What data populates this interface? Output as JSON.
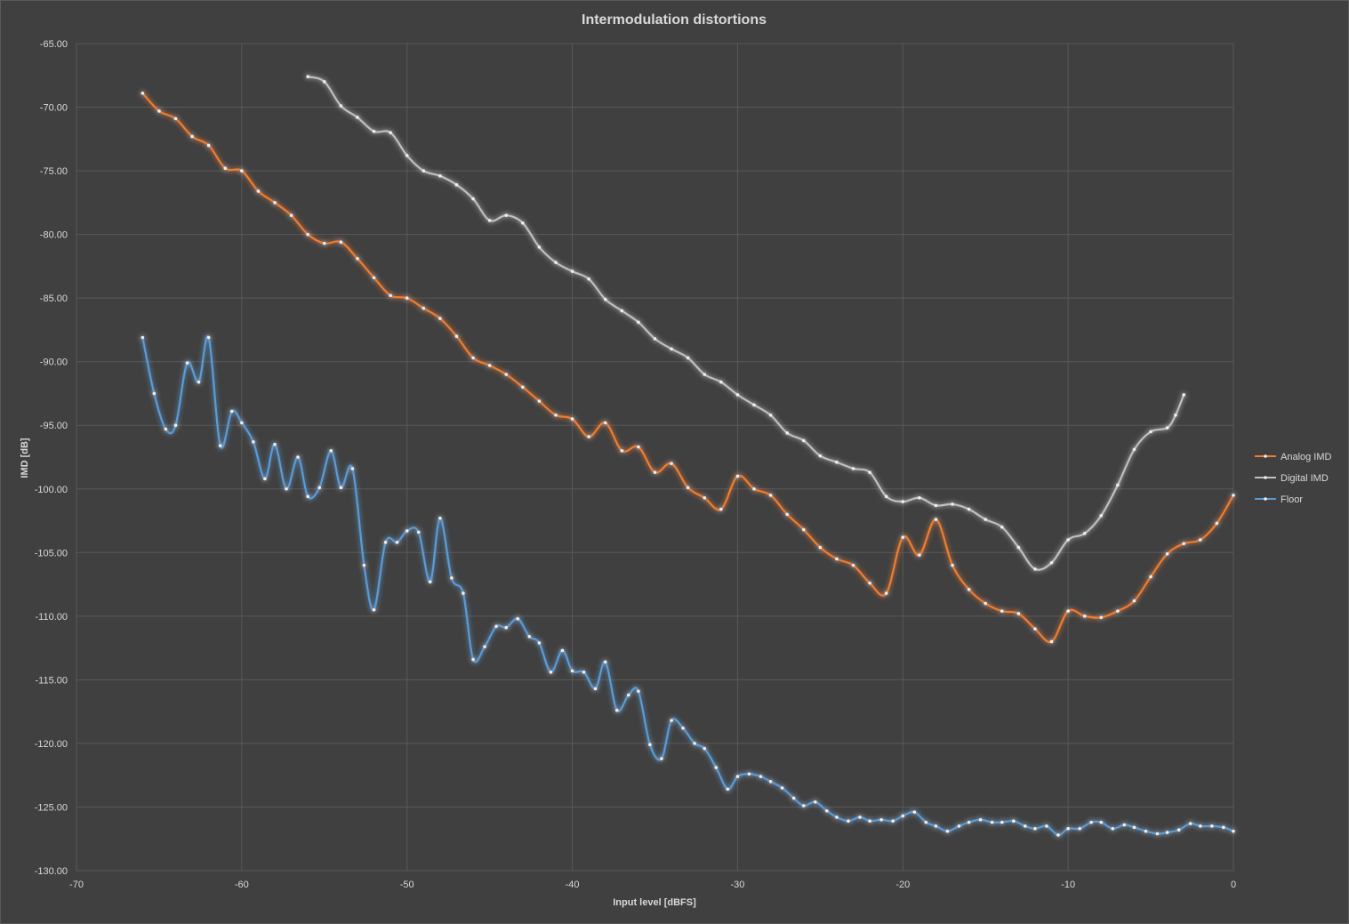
{
  "chart_data": {
    "type": "line",
    "title": "Intermodulation distortions",
    "xlabel": "Input level [dBFS]",
    "ylabel": "IMD [dB]",
    "xlim": [
      -70,
      0
    ],
    "ylim": [
      -130,
      -65
    ],
    "xticks": [
      -70,
      -60,
      -50,
      -40,
      -30,
      -20,
      -10,
      0
    ],
    "xtick_labels": [
      "-70",
      "-60",
      "-50",
      "-40",
      "-30",
      "-20",
      "-10",
      "0"
    ],
    "yticks": [
      -65,
      -70,
      -75,
      -80,
      -85,
      -90,
      -95,
      -100,
      -105,
      -110,
      -115,
      -120,
      -125,
      -130
    ],
    "ytick_labels": [
      "-65.00",
      "-70.00",
      "-75.00",
      "-80.00",
      "-85.00",
      "-90.00",
      "-95.00",
      "-100.00",
      "-105.00",
      "-110.00",
      "-115.00",
      "-120.00",
      "-125.00",
      "-130.00"
    ],
    "grid": true,
    "legend_position": "right",
    "series": [
      {
        "name": "Analog IMD",
        "color": "#ED7D31",
        "points": [
          [
            -66,
            -68.9
          ],
          [
            -65,
            -70.3
          ],
          [
            -64,
            -70.9
          ],
          [
            -63,
            -72.3
          ],
          [
            -62,
            -73.0
          ],
          [
            -61,
            -74.8
          ],
          [
            -60,
            -75.0
          ],
          [
            -59,
            -76.6
          ],
          [
            -58,
            -77.5
          ],
          [
            -57,
            -78.5
          ],
          [
            -56,
            -80.0
          ],
          [
            -55,
            -80.7
          ],
          [
            -54,
            -80.6
          ],
          [
            -53,
            -81.9
          ],
          [
            -52,
            -83.4
          ],
          [
            -51,
            -84.8
          ],
          [
            -50,
            -85.0
          ],
          [
            -49,
            -85.8
          ],
          [
            -48,
            -86.6
          ],
          [
            -47,
            -88.0
          ],
          [
            -46,
            -89.7
          ],
          [
            -45,
            -90.3
          ],
          [
            -44,
            -91.0
          ],
          [
            -43,
            -92.0
          ],
          [
            -42,
            -93.1
          ],
          [
            -41,
            -94.2
          ],
          [
            -40,
            -94.5
          ],
          [
            -39,
            -95.9
          ],
          [
            -38,
            -94.8
          ],
          [
            -37,
            -97.0
          ],
          [
            -36,
            -96.7
          ],
          [
            -35,
            -98.7
          ],
          [
            -34,
            -98.0
          ],
          [
            -33,
            -99.9
          ],
          [
            -32,
            -100.7
          ],
          [
            -31,
            -101.6
          ],
          [
            -30,
            -99.0
          ],
          [
            -29,
            -100.0
          ],
          [
            -28,
            -100.5
          ],
          [
            -27,
            -102.0
          ],
          [
            -26,
            -103.2
          ],
          [
            -25,
            -104.6
          ],
          [
            -24,
            -105.5
          ],
          [
            -23,
            -106.0
          ],
          [
            -22,
            -107.4
          ],
          [
            -21,
            -108.2
          ],
          [
            -20,
            -103.8
          ],
          [
            -19,
            -105.2
          ],
          [
            -18,
            -102.4
          ],
          [
            -17,
            -106.0
          ],
          [
            -16,
            -107.9
          ],
          [
            -15,
            -109.0
          ],
          [
            -14,
            -109.6
          ],
          [
            -13,
            -109.8
          ],
          [
            -12,
            -111.0
          ],
          [
            -11,
            -112.0
          ],
          [
            -10,
            -109.6
          ],
          [
            -9,
            -110.0
          ],
          [
            -8,
            -110.1
          ],
          [
            -7,
            -109.6
          ],
          [
            -6,
            -108.8
          ],
          [
            -5,
            -106.9
          ],
          [
            -4,
            -105.1
          ],
          [
            -3,
            -104.3
          ],
          [
            -2,
            -104.0
          ],
          [
            -1,
            -102.7
          ],
          [
            0,
            -100.5
          ]
        ]
      },
      {
        "name": "Digital IMD",
        "color": "#BFBFBF",
        "points": [
          [
            -56,
            -67.6
          ],
          [
            -55,
            -68.0
          ],
          [
            -54,
            -69.9
          ],
          [
            -53,
            -70.8
          ],
          [
            -52,
            -71.9
          ],
          [
            -51,
            -72.0
          ],
          [
            -50,
            -73.8
          ],
          [
            -49,
            -75.0
          ],
          [
            -48,
            -75.4
          ],
          [
            -47,
            -76.1
          ],
          [
            -46,
            -77.2
          ],
          [
            -45,
            -78.9
          ],
          [
            -44,
            -78.5
          ],
          [
            -43,
            -79.1
          ],
          [
            -42,
            -81.0
          ],
          [
            -41,
            -82.2
          ],
          [
            -40,
            -82.9
          ],
          [
            -39,
            -83.5
          ],
          [
            -38,
            -85.1
          ],
          [
            -37,
            -86.0
          ],
          [
            -36,
            -86.9
          ],
          [
            -35,
            -88.2
          ],
          [
            -34,
            -89.0
          ],
          [
            -33,
            -89.7
          ],
          [
            -32,
            -91.0
          ],
          [
            -31,
            -91.6
          ],
          [
            -30,
            -92.6
          ],
          [
            -29,
            -93.4
          ],
          [
            -28,
            -94.2
          ],
          [
            -27,
            -95.6
          ],
          [
            -26,
            -96.2
          ],
          [
            -25,
            -97.4
          ],
          [
            -24,
            -97.9
          ],
          [
            -23,
            -98.4
          ],
          [
            -22,
            -98.7
          ],
          [
            -21,
            -100.6
          ],
          [
            -20,
            -101.0
          ],
          [
            -19,
            -100.7
          ],
          [
            -18,
            -101.3
          ],
          [
            -17,
            -101.2
          ],
          [
            -16,
            -101.6
          ],
          [
            -15,
            -102.4
          ],
          [
            -14,
            -103.0
          ],
          [
            -13,
            -104.6
          ],
          [
            -12,
            -106.3
          ],
          [
            -11,
            -105.8
          ],
          [
            -10,
            -104.0
          ],
          [
            -9,
            -103.5
          ],
          [
            -8,
            -102.1
          ],
          [
            -7,
            -99.7
          ],
          [
            -6,
            -96.9
          ],
          [
            -5,
            -95.5
          ],
          [
            -4,
            -95.2
          ],
          [
            -3.5,
            -94.2
          ],
          [
            -3,
            -92.6
          ]
        ]
      },
      {
        "name": "Floor",
        "color": "#5B9BD5",
        "points": [
          [
            -66,
            -88.1
          ],
          [
            -65.3,
            -92.5
          ],
          [
            -64.6,
            -95.3
          ],
          [
            -64,
            -95.0
          ],
          [
            -63.3,
            -90.1
          ],
          [
            -62.6,
            -91.6
          ],
          [
            -62,
            -88.1
          ],
          [
            -61.3,
            -96.6
          ],
          [
            -60.6,
            -93.9
          ],
          [
            -60,
            -94.8
          ],
          [
            -59.3,
            -96.3
          ],
          [
            -58.6,
            -99.2
          ],
          [
            -58,
            -96.5
          ],
          [
            -57.3,
            -100.0
          ],
          [
            -56.6,
            -97.5
          ],
          [
            -56,
            -100.6
          ],
          [
            -55.3,
            -99.9
          ],
          [
            -54.6,
            -97.0
          ],
          [
            -54,
            -99.9
          ],
          [
            -53.3,
            -98.4
          ],
          [
            -52.6,
            -106.0
          ],
          [
            -52,
            -109.5
          ],
          [
            -51.3,
            -104.2
          ],
          [
            -50.6,
            -104.2
          ],
          [
            -50,
            -103.3
          ],
          [
            -49.3,
            -103.4
          ],
          [
            -48.6,
            -107.3
          ],
          [
            -48,
            -102.3
          ],
          [
            -47.3,
            -107.0
          ],
          [
            -46.6,
            -108.2
          ],
          [
            -46,
            -113.4
          ],
          [
            -45.3,
            -112.4
          ],
          [
            -44.6,
            -110.8
          ],
          [
            -44,
            -110.9
          ],
          [
            -43.3,
            -110.2
          ],
          [
            -42.6,
            -111.6
          ],
          [
            -42,
            -112.1
          ],
          [
            -41.3,
            -114.4
          ],
          [
            -40.6,
            -112.7
          ],
          [
            -40,
            -114.3
          ],
          [
            -39.3,
            -114.4
          ],
          [
            -38.6,
            -115.7
          ],
          [
            -38,
            -113.6
          ],
          [
            -37.3,
            -117.4
          ],
          [
            -36.6,
            -116.2
          ],
          [
            -36,
            -115.9
          ],
          [
            -35.3,
            -120.1
          ],
          [
            -34.6,
            -121.2
          ],
          [
            -34,
            -118.2
          ],
          [
            -33.3,
            -118.8
          ],
          [
            -32.6,
            -120.0
          ],
          [
            -32,
            -120.4
          ],
          [
            -31.3,
            -121.9
          ],
          [
            -30.6,
            -123.6
          ],
          [
            -30,
            -122.6
          ],
          [
            -29.3,
            -122.4
          ],
          [
            -28.6,
            -122.6
          ],
          [
            -28,
            -123.0
          ],
          [
            -27.3,
            -123.5
          ],
          [
            -26.6,
            -124.3
          ],
          [
            -26,
            -124.9
          ],
          [
            -25.3,
            -124.6
          ],
          [
            -24.6,
            -125.3
          ],
          [
            -24,
            -125.8
          ],
          [
            -23.3,
            -126.1
          ],
          [
            -22.6,
            -125.8
          ],
          [
            -22,
            -126.1
          ],
          [
            -21.3,
            -126.0
          ],
          [
            -20.6,
            -126.1
          ],
          [
            -20,
            -125.7
          ],
          [
            -19.3,
            -125.4
          ],
          [
            -18.6,
            -126.2
          ],
          [
            -18,
            -126.5
          ],
          [
            -17.3,
            -126.9
          ],
          [
            -16.6,
            -126.5
          ],
          [
            -16,
            -126.2
          ],
          [
            -15.3,
            -126.0
          ],
          [
            -14.6,
            -126.2
          ],
          [
            -14,
            -126.2
          ],
          [
            -13.3,
            -126.1
          ],
          [
            -12.6,
            -126.5
          ],
          [
            -12,
            -126.7
          ],
          [
            -11.3,
            -126.5
          ],
          [
            -10.6,
            -127.2
          ],
          [
            -10,
            -126.7
          ],
          [
            -9.3,
            -126.7
          ],
          [
            -8.6,
            -126.2
          ],
          [
            -8,
            -126.2
          ],
          [
            -7.3,
            -126.7
          ],
          [
            -6.6,
            -126.4
          ],
          [
            -6,
            -126.6
          ],
          [
            -5.3,
            -126.9
          ],
          [
            -4.6,
            -127.1
          ],
          [
            -4,
            -127.0
          ],
          [
            -3.3,
            -126.8
          ],
          [
            -2.6,
            -126.3
          ],
          [
            -2,
            -126.5
          ],
          [
            -1.3,
            -126.5
          ],
          [
            -0.6,
            -126.6
          ],
          [
            0,
            -126.9
          ]
        ]
      }
    ]
  }
}
